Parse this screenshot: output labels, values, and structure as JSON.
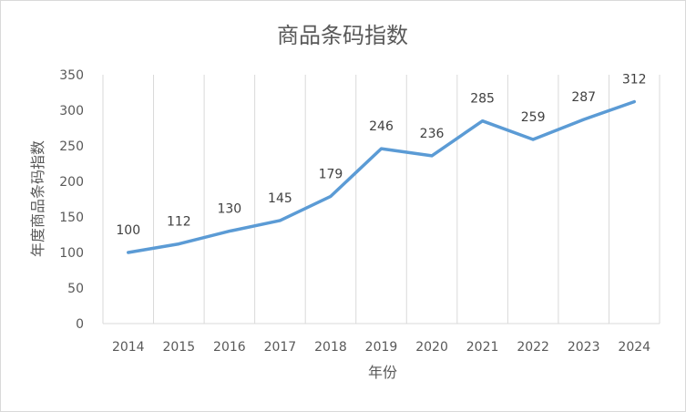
{
  "chart_data": {
    "type": "line",
    "title": "商品条码指数",
    "xlabel": "年份",
    "ylabel": "年度商品条码指数",
    "categories": [
      "2014",
      "2015",
      "2016",
      "2017",
      "2018",
      "2019",
      "2020",
      "2021",
      "2022",
      "2023",
      "2024"
    ],
    "series": [
      {
        "values": [
          100,
          112,
          130,
          145,
          179,
          246,
          236,
          285,
          259,
          287,
          312
        ],
        "color": "#5b9bd5"
      }
    ],
    "ylim": [
      0,
      350
    ],
    "yticks": [
      0,
      50,
      100,
      150,
      200,
      250,
      300,
      350
    ],
    "grid": "vertical",
    "legend": "none",
    "data_labels": true
  }
}
